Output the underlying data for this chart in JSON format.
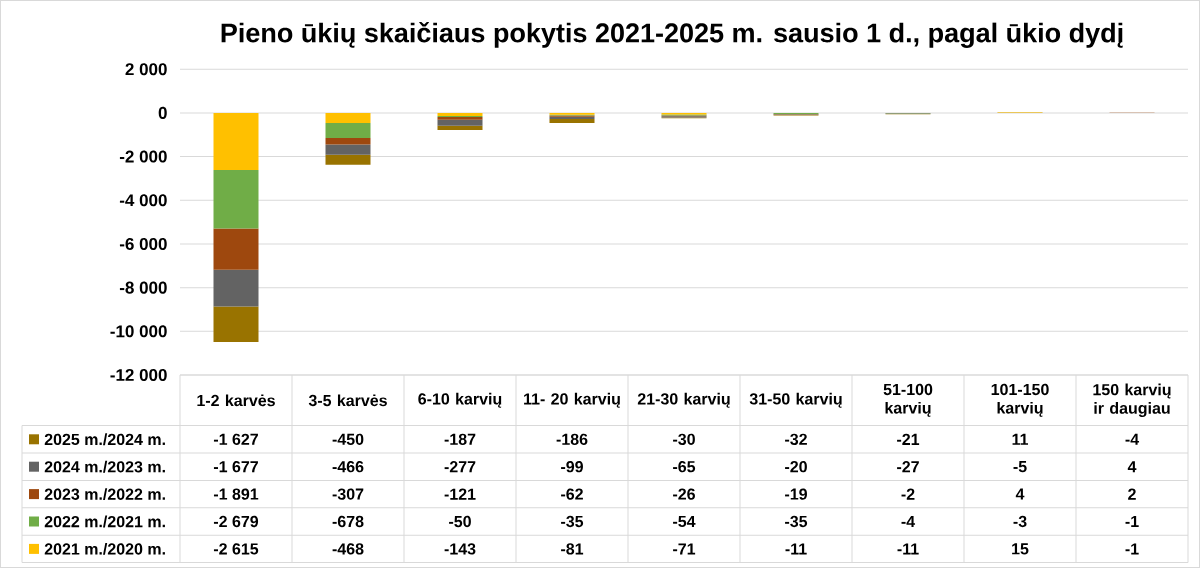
{
  "chart_data": {
    "type": "bar",
    "stacked": true,
    "title": "Pieno ūkių skaičiaus pokytis 2021-2025 m. sausio 1 d., pagal ūkio dydį",
    "categories": [
      "1-2 karvės",
      "3-5 karvės",
      "6-10 karvių",
      "11- 20 karvių",
      "21-30 karvių",
      "31-50 karvių",
      "51-100 karvių",
      "101-150 karvių",
      "150 karvių ir daugiau"
    ],
    "series": [
      {
        "name": "2021 m./2020 m.",
        "color": "#ffc000",
        "values": [
          -2615,
          -468,
          -143,
          -81,
          -71,
          -11,
          -11,
          15,
          -1
        ],
        "value_labels": [
          "-2 615",
          "-468",
          "-143",
          "-81",
          "-71",
          "-11",
          "-11",
          "15",
          "-1"
        ]
      },
      {
        "name": "2022 m./2021 m.",
        "color": "#70ad47",
        "values": [
          -2679,
          -678,
          -50,
          -35,
          -54,
          -35,
          -4,
          -3,
          -1
        ],
        "value_labels": [
          "-2 679",
          "-678",
          "-50",
          "-35",
          "-54",
          "-35",
          "-4",
          "-3",
          "-1"
        ]
      },
      {
        "name": "2023 m./2022 m.",
        "color": "#9e480e",
        "values": [
          -1891,
          -307,
          -121,
          -62,
          -26,
          -19,
          -2,
          4,
          2
        ],
        "value_labels": [
          "-1 891",
          "-307",
          "-121",
          "-62",
          "-26",
          "-19",
          "-2",
          "4",
          "2"
        ]
      },
      {
        "name": "2024 m./2023 m.",
        "color": "#636363",
        "values": [
          -1677,
          -466,
          -277,
          -99,
          -65,
          -20,
          -27,
          -5,
          4
        ],
        "value_labels": [
          "-1 677",
          "-466",
          "-277",
          "-99",
          "-65",
          "-20",
          "-27",
          "-5",
          "4"
        ]
      },
      {
        "name": "2025 m./2024 m.",
        "color": "#997300",
        "values": [
          -1627,
          -450,
          -187,
          -186,
          -30,
          -32,
          -21,
          11,
          -4
        ],
        "value_labels": [
          "-1 627",
          "-450",
          "-187",
          "-186",
          "-30",
          "-32",
          "-21",
          "11",
          "-4"
        ]
      }
    ],
    "ylim": [
      -12000,
      2000
    ],
    "yticks": [
      {
        "value": -12000,
        "label": "-12 000"
      },
      {
        "value": -10000,
        "label": "-10 000"
      },
      {
        "value": -8000,
        "label": "-8 000"
      },
      {
        "value": -6000,
        "label": "-6 000"
      },
      {
        "value": -4000,
        "label": "-4 000"
      },
      {
        "value": -2000,
        "label": "-2 000"
      },
      0,
      {
        "value": 2000,
        "label": "2 000"
      }
    ],
    "grid": "y",
    "legend": "bottom"
  }
}
